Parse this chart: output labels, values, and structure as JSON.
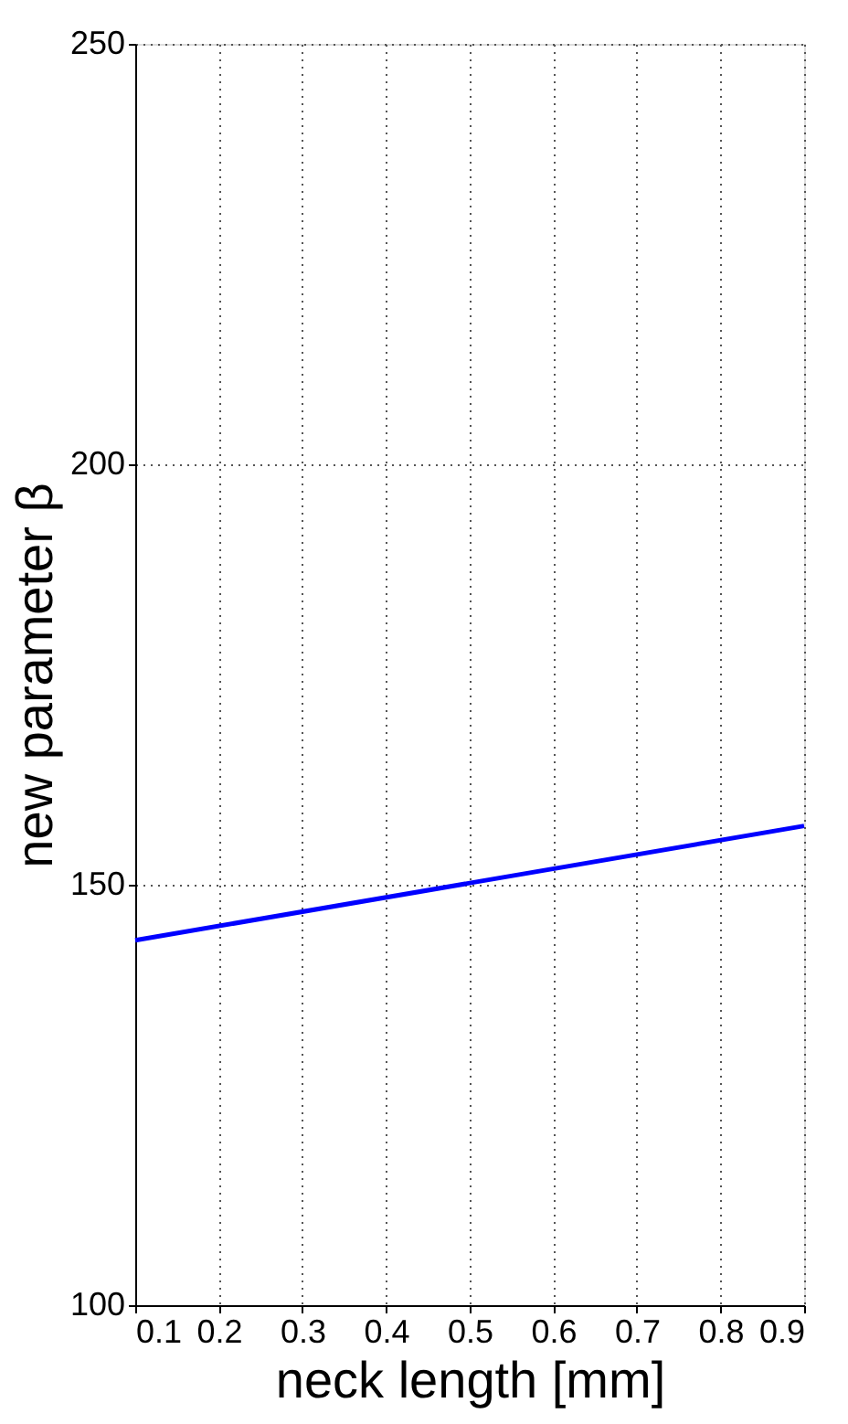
{
  "chart_data": {
    "type": "line",
    "xlabel": "neck length [mm]",
    "ylabel": "new parameter β",
    "x": [
      0.1,
      0.5,
      0.9
    ],
    "series": [
      {
        "color": "#0000ff",
        "values": [
          143.4,
          150.2,
          157.0
        ]
      }
    ],
    "xlim": [
      0.1,
      0.9
    ],
    "xticks": [
      0.1,
      0.2,
      0.3,
      0.4,
      0.5,
      0.6,
      0.7,
      0.8,
      0.9
    ],
    "ylim": [
      100,
      250
    ],
    "yticks": [
      100,
      150,
      200,
      250
    ],
    "grid": true,
    "line_style": "solid"
  }
}
